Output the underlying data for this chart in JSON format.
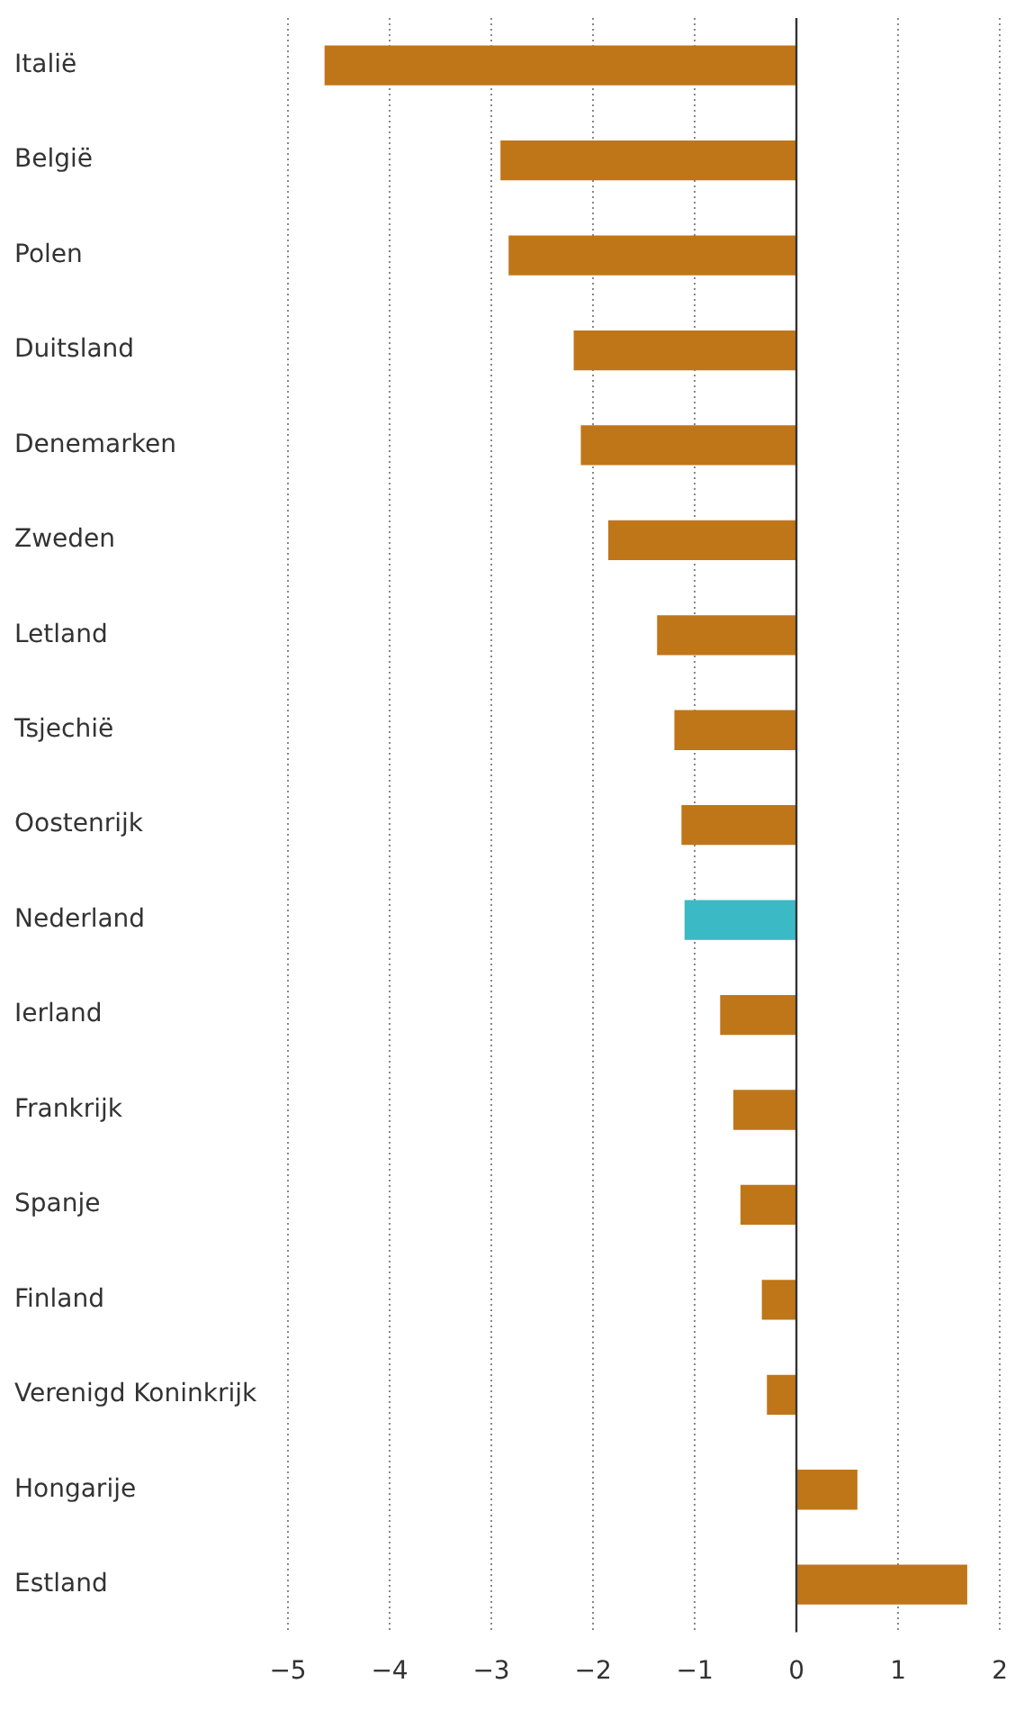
{
  "chart_data": {
    "type": "bar",
    "orientation": "horizontal",
    "categories": [
      "Italië",
      "België",
      "Polen",
      "Duitsland",
      "Denemarken",
      "Zweden",
      "Letland",
      "Tsjechië",
      "Oostenrijk",
      "Nederland",
      "Ierland",
      "Frankrijk",
      "Spanje",
      "Finland",
      "Verenigd Koninkrijk",
      "Hongarije",
      "Estland"
    ],
    "values": [
      -4.64,
      -2.91,
      -2.83,
      -2.19,
      -2.12,
      -1.85,
      -1.37,
      -1.2,
      -1.13,
      -1.1,
      -0.75,
      -0.62,
      -0.55,
      -0.34,
      -0.29,
      0.6,
      1.68
    ],
    "colors": [
      "#bf7619",
      "#bf7619",
      "#bf7619",
      "#bf7619",
      "#bf7619",
      "#bf7619",
      "#bf7619",
      "#bf7619",
      "#bf7619",
      "#3bb9c4",
      "#bf7619",
      "#bf7619",
      "#bf7619",
      "#bf7619",
      "#bf7619",
      "#bf7619",
      "#bf7619"
    ],
    "xlim": [
      -5,
      2
    ],
    "xticks": [
      {
        "value": -5,
        "label": "−5"
      },
      {
        "value": -4,
        "label": "−4"
      },
      {
        "value": -3,
        "label": "−3"
      },
      {
        "value": -2,
        "label": "−2"
      },
      {
        "value": -1,
        "label": "−1"
      },
      0,
      1,
      2
    ],
    "ref_lines": [
      {
        "axis": "x",
        "value": 0,
        "color": "#333333"
      }
    ],
    "grid": "x",
    "legend": false
  }
}
